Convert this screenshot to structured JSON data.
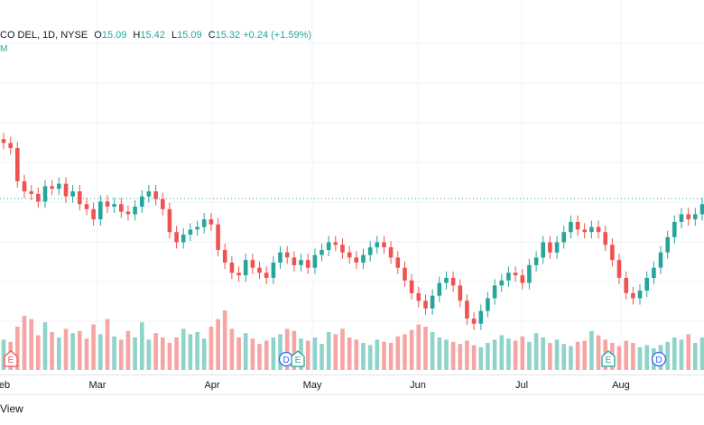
{
  "symbol": {
    "title": "CO DEL, 1D, NYSE",
    "open_label": "O",
    "open": "15.09",
    "high_label": "H",
    "high": "15.42",
    "low_label": "L",
    "low": "15.09",
    "close_label": "C",
    "close": "15.32",
    "change": "+0.24 (+1.59%)",
    "indicator_fragment": "M"
  },
  "colors": {
    "up": "#26a69a",
    "down": "#ef5350",
    "up_vol": "#8fd3c9",
    "down_vol": "#f5a6a4",
    "grid": "#f0f3fa",
    "current_line": "#26a69a"
  },
  "x_axis": {
    "labels": [
      "eb",
      "Mar",
      "Apr",
      "May",
      "Jun",
      "Jul",
      "Aug"
    ]
  },
  "events": [
    {
      "type": "earnings",
      "label": "E",
      "color": "#ef5350"
    },
    {
      "type": "dividend",
      "label": "D",
      "color": "#2962ff"
    },
    {
      "type": "earnings",
      "label": "E",
      "color": "#26a69a"
    },
    {
      "type": "earnings",
      "label": "E",
      "color": "#26a69a"
    },
    {
      "type": "dividend",
      "label": "D",
      "color": "#2962ff"
    }
  ],
  "bottom_bar": {
    "view_label": "View"
  },
  "chart_data": {
    "type": "candlestick",
    "current_price": 15.32,
    "price_points": [
      17.5,
      17.3,
      16.0,
      15.6,
      15.5,
      15.2,
      15.8,
      15.7,
      15.9,
      15.4,
      15.6,
      15.1,
      14.9,
      14.5,
      15.2,
      15.0,
      15.1,
      14.8,
      14.7,
      15.0,
      15.4,
      15.6,
      15.3,
      14.9,
      14.0,
      13.6,
      13.9,
      14.1,
      14.2,
      14.5,
      14.3,
      13.3,
      12.8,
      12.4,
      12.3,
      12.9,
      12.6,
      12.4,
      12.2,
      12.8,
      13.2,
      13.0,
      12.7,
      12.9,
      12.6,
      13.1,
      13.3,
      13.6,
      13.5,
      13.2,
      13.0,
      12.8,
      13.1,
      13.4,
      13.6,
      13.4,
      13.0,
      12.6,
      12.1,
      11.6,
      11.3,
      11.0,
      11.5,
      12.0,
      12.2,
      11.9,
      11.3,
      10.6,
      10.4,
      10.9,
      11.4,
      11.9,
      12.1,
      12.4,
      12.3,
      12.0,
      12.7,
      13.0,
      13.6,
      13.2,
      13.6,
      14.0,
      14.4,
      14.1,
      14.0,
      14.2,
      14.0,
      13.5,
      12.9,
      12.2,
      11.6,
      11.4,
      11.7,
      12.2,
      12.6,
      13.2,
      13.8,
      14.4,
      14.7,
      14.5,
      14.7,
      15.1
    ],
    "volume_points": [
      28,
      26,
      40,
      50,
      47,
      32,
      44,
      35,
      30,
      38,
      34,
      36,
      29,
      42,
      33,
      47,
      31,
      28,
      36,
      30,
      44,
      28,
      34,
      30,
      25,
      30,
      38,
      33,
      35,
      29,
      40,
      47,
      55,
      38,
      30,
      34,
      29,
      24,
      27,
      30,
      33,
      38,
      36,
      29,
      27,
      30,
      24,
      35,
      33,
      38,
      30,
      28,
      25,
      23,
      28,
      26,
      25,
      31,
      33,
      37,
      42,
      40,
      35,
      30,
      28,
      26,
      24,
      27,
      23,
      21,
      25,
      28,
      32,
      29,
      27,
      31,
      26,
      34,
      30,
      25,
      28,
      24,
      22,
      26,
      27,
      36,
      32,
      28,
      25,
      22,
      27,
      25,
      21,
      23,
      20,
      23,
      26,
      30,
      28,
      33,
      25,
      30
    ],
    "x_axis_months": [
      "Feb",
      "Mar",
      "Apr",
      "May",
      "Jun",
      "Jul",
      "Aug"
    ],
    "grid": true,
    "legend": "top-left"
  }
}
